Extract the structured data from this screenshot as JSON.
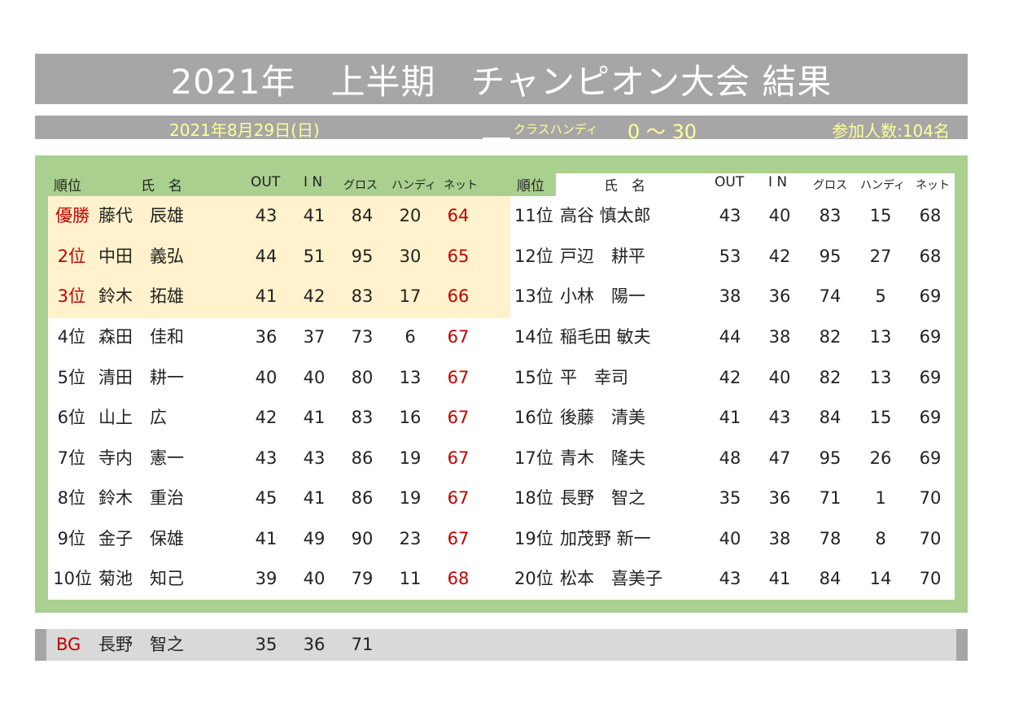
{
  "title": "2021年　上半期　チャンピオン大会 結果",
  "info": {
    "date": "2021年8月29日(日)",
    "class_label": "クラスハンディ",
    "class_value": "0 ～ 30",
    "participants": "参加人数:104名"
  },
  "headers": {
    "rank": "順位",
    "name": "氏　名",
    "out": "OUT",
    "in": "I N",
    "gross": "グロス",
    "handicap": "ハンディ",
    "net": "ネット"
  },
  "left_rows": [
    {
      "rank": "優勝",
      "surname": "藤代",
      "given": "辰雄",
      "out": "43",
      "in": "41",
      "gross": "84",
      "hdcp": "20",
      "net": "64"
    },
    {
      "rank": "2位",
      "surname": "中田",
      "given": "義弘",
      "out": "44",
      "in": "51",
      "gross": "95",
      "hdcp": "30",
      "net": "65"
    },
    {
      "rank": "3位",
      "surname": "鈴木",
      "given": "拓雄",
      "out": "41",
      "in": "42",
      "gross": "83",
      "hdcp": "17",
      "net": "66"
    },
    {
      "rank": "4位",
      "surname": "森田",
      "given": "佳和",
      "out": "36",
      "in": "37",
      "gross": "73",
      "hdcp": "6",
      "net": "67"
    },
    {
      "rank": "5位",
      "surname": "清田",
      "given": "耕一",
      "out": "40",
      "in": "40",
      "gross": "80",
      "hdcp": "13",
      "net": "67"
    },
    {
      "rank": "6位",
      "surname": "山上",
      "given": "広",
      "out": "42",
      "in": "41",
      "gross": "83",
      "hdcp": "16",
      "net": "67"
    },
    {
      "rank": "7位",
      "surname": "寺内",
      "given": "憲一",
      "out": "43",
      "in": "43",
      "gross": "86",
      "hdcp": "19",
      "net": "67"
    },
    {
      "rank": "8位",
      "surname": "鈴木",
      "given": "重治",
      "out": "45",
      "in": "41",
      "gross": "86",
      "hdcp": "19",
      "net": "67"
    },
    {
      "rank": "9位",
      "surname": "金子",
      "given": "保雄",
      "out": "41",
      "in": "49",
      "gross": "90",
      "hdcp": "23",
      "net": "67"
    },
    {
      "rank": "10位",
      "surname": "菊池",
      "given": "知己",
      "out": "39",
      "in": "40",
      "gross": "79",
      "hdcp": "11",
      "net": "68"
    }
  ],
  "right_rows": [
    {
      "rank": "11位",
      "name": "高谷 慎太郎",
      "out": "43",
      "in": "40",
      "gross": "83",
      "hdcp": "15",
      "net": "68"
    },
    {
      "rank": "12位",
      "name": "戸辺　耕平",
      "out": "53",
      "in": "42",
      "gross": "95",
      "hdcp": "27",
      "net": "68"
    },
    {
      "rank": "13位",
      "name": "小林　陽一",
      "out": "38",
      "in": "36",
      "gross": "74",
      "hdcp": "5",
      "net": "69"
    },
    {
      "rank": "14位",
      "name": "稲毛田 敏夫",
      "out": "44",
      "in": "38",
      "gross": "82",
      "hdcp": "13",
      "net": "69"
    },
    {
      "rank": "15位",
      "name": "平　幸司",
      "out": "42",
      "in": "40",
      "gross": "82",
      "hdcp": "13",
      "net": "69"
    },
    {
      "rank": "16位",
      "name": "後藤　清美",
      "out": "41",
      "in": "43",
      "gross": "84",
      "hdcp": "15",
      "net": "69"
    },
    {
      "rank": "17位",
      "name": "青木　隆夫",
      "out": "48",
      "in": "47",
      "gross": "95",
      "hdcp": "26",
      "net": "69"
    },
    {
      "rank": "18位",
      "name": "長野　智之",
      "out": "35",
      "in": "36",
      "gross": "71",
      "hdcp": "1",
      "net": "70"
    },
    {
      "rank": "19位",
      "name": "加茂野 新一",
      "out": "40",
      "in": "38",
      "gross": "78",
      "hdcp": "8",
      "net": "70"
    },
    {
      "rank": "20位",
      "name": "松本　喜美子",
      "out": "43",
      "in": "41",
      "gross": "84",
      "hdcp": "14",
      "net": "70"
    }
  ],
  "best_gross": {
    "label": "BG",
    "surname": "長野",
    "given": "智之",
    "out": "35",
    "in": "36",
    "gross": "71"
  },
  "colors": {
    "title_bar": "#a6a6a6",
    "info_text": "#ffff99",
    "panel_green": "#a9d08e",
    "podium_highlight": "#fff2cc",
    "rank_red": "#c00000",
    "bg_bar": "#d9d9d9"
  }
}
